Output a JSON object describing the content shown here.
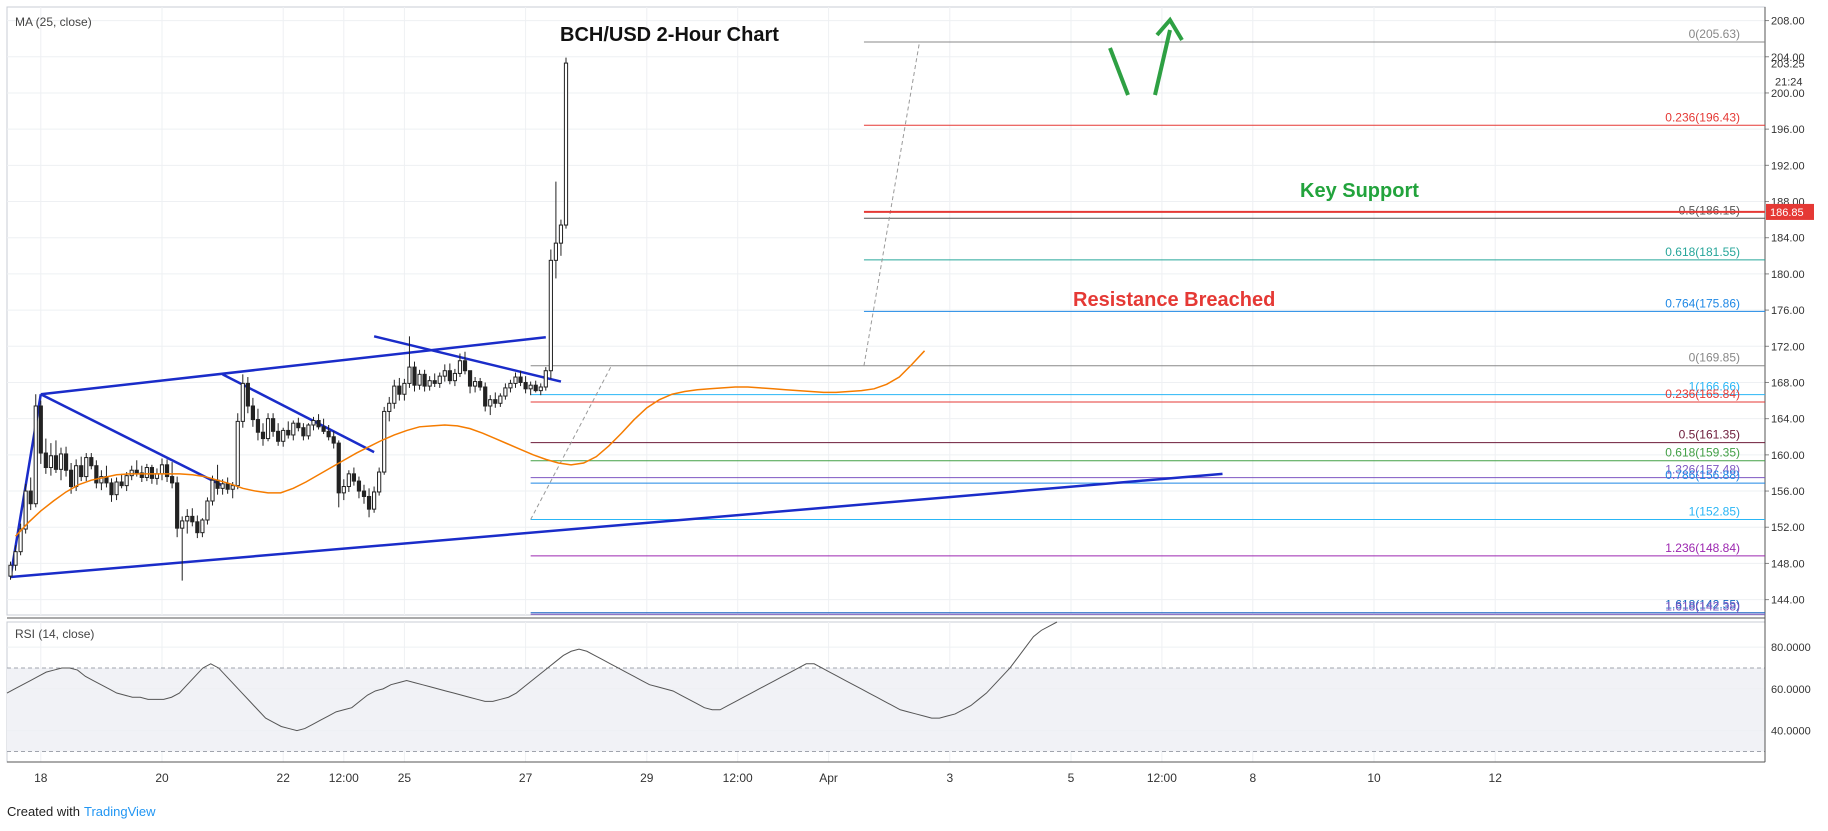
{
  "chart_data": {
    "type": "candlestick",
    "title": "BCH/USD 2-Hour Chart",
    "indicator_label": "MA (25, close)",
    "rsi_label": "RSI (14, close)",
    "price_axis": {
      "ticks": [
        "208.00",
        "204.00",
        "200.00",
        "196.00",
        "192.00",
        "188.00",
        "184.00",
        "180.00",
        "176.00",
        "172.00",
        "168.00",
        "164.00",
        "160.00",
        "156.00",
        "152.00",
        "148.00",
        "144.00"
      ],
      "range": [
        142.3,
        209.5
      ],
      "last_price": "203.25",
      "countdown": "21:24",
      "marked_price": "186.85"
    },
    "rsi_axis": {
      "ticks": [
        "80.0000",
        "60.0000",
        "40.0000"
      ],
      "range": [
        25,
        92
      ],
      "bands": [
        70,
        30
      ]
    },
    "x_axis": {
      "ticks": [
        "18",
        "20",
        "22",
        "12:00",
        "25",
        "27",
        "29",
        "12:00",
        "Apr",
        "3",
        "5",
        "12:00",
        "8",
        "10",
        "12"
      ],
      "tick_bars": [
        6,
        30,
        54,
        66,
        78,
        102,
        126,
        144,
        162,
        186,
        210,
        228,
        246,
        270,
        294
      ]
    },
    "annotations": {
      "key_support": "Key Support",
      "resistance": "Resistance Breached",
      "key_support_price": 186.85
    },
    "fib_upper": [
      {
        "label": "0(205.63)",
        "price": 205.63,
        "color": "#888888"
      },
      {
        "label": "0.236(196.43)",
        "price": 196.43,
        "color": "#e53935"
      },
      {
        "label": "0.5(186.15)",
        "price": 186.15,
        "color": "#555555"
      },
      {
        "label": "0.618(181.55)",
        "price": 181.55,
        "color": "#26a69a"
      },
      {
        "label": "0.764(175.86)",
        "price": 175.86,
        "color": "#1e88e5"
      }
    ],
    "fib_lower": [
      {
        "label": "0(169.85)",
        "price": 169.85,
        "color": "#888888"
      },
      {
        "label": "1(166.66)",
        "price": 166.66,
        "color": "#29b6f6"
      },
      {
        "label": "0.236(165.84)",
        "price": 165.84,
        "color": "#e53935"
      },
      {
        "label": "0.5(161.35)",
        "price": 161.35,
        "color": "#6d1b3a"
      },
      {
        "label": "0.618(159.35)",
        "price": 159.35,
        "color": "#43a047"
      },
      {
        "label": "1.326(157.48)",
        "price": 157.48,
        "color": "#7e57c2"
      },
      {
        "label": "0.786(156.88)",
        "price": 156.88,
        "color": "#1e88e5"
      },
      {
        "label": "1(152.85)",
        "price": 152.85,
        "color": "#29b6f6"
      },
      {
        "label": "1.236(148.84)",
        "price": 148.84,
        "color": "#9c27b0"
      },
      {
        "label": "1.618(142.55)",
        "price": 142.55,
        "color": "#1565c0"
      },
      {
        "label": "1.618(142.38)",
        "price": 142.38,
        "color": "#7e57c2"
      }
    ],
    "trend_lines": [
      {
        "from": [
          0,
          146.5
        ],
        "to": [
          6,
          166.7
        ]
      },
      {
        "from": [
          6,
          166.7
        ],
        "to": [
          42,
          156.6
        ]
      },
      {
        "from": [
          6,
          166.7
        ],
        "to": [
          106,
          173.0
        ]
      },
      {
        "from": [
          0,
          146.5
        ],
        "to": [
          240,
          157.9
        ]
      },
      {
        "from": [
          42,
          168.9
        ],
        "to": [
          72,
          160.3
        ]
      },
      {
        "from": [
          72,
          173.1
        ],
        "to": [
          109,
          168.1
        ]
      }
    ],
    "candles": [
      {
        "o": 146.6,
        "h": 148.2,
        "l": 146.2,
        "c": 147.8
      },
      {
        "o": 147.8,
        "h": 150.0,
        "l": 147.2,
        "c": 149.3
      },
      {
        "o": 149.3,
        "h": 152.4,
        "l": 148.9,
        "c": 151.8
      },
      {
        "o": 151.8,
        "h": 156.8,
        "l": 151.3,
        "c": 156.0
      },
      {
        "o": 156.0,
        "h": 157.5,
        "l": 153.9,
        "c": 154.6
      },
      {
        "o": 154.6,
        "h": 166.7,
        "l": 154.2,
        "c": 165.4
      },
      {
        "o": 165.4,
        "h": 166.0,
        "l": 159.0,
        "c": 160.2
      },
      {
        "o": 160.2,
        "h": 161.8,
        "l": 157.9,
        "c": 158.6
      },
      {
        "o": 158.6,
        "h": 161.3,
        "l": 157.7,
        "c": 159.9
      },
      {
        "o": 159.9,
        "h": 161.6,
        "l": 158.0,
        "c": 158.4
      },
      {
        "o": 158.4,
        "h": 160.8,
        "l": 157.2,
        "c": 160.1
      },
      {
        "o": 160.1,
        "h": 160.9,
        "l": 157.6,
        "c": 158.3
      },
      {
        "o": 158.3,
        "h": 159.1,
        "l": 155.7,
        "c": 156.5
      },
      {
        "o": 156.5,
        "h": 159.5,
        "l": 156.0,
        "c": 158.8
      },
      {
        "o": 158.8,
        "h": 159.8,
        "l": 157.1,
        "c": 157.6
      },
      {
        "o": 157.6,
        "h": 160.2,
        "l": 157.1,
        "c": 159.7
      },
      {
        "o": 159.7,
        "h": 160.2,
        "l": 158.4,
        "c": 158.8
      },
      {
        "o": 158.8,
        "h": 159.4,
        "l": 156.3,
        "c": 156.9
      },
      {
        "o": 156.9,
        "h": 158.3,
        "l": 156.1,
        "c": 157.6
      },
      {
        "o": 157.6,
        "h": 158.8,
        "l": 156.4,
        "c": 156.9
      },
      {
        "o": 156.9,
        "h": 157.4,
        "l": 154.8,
        "c": 155.6
      },
      {
        "o": 155.6,
        "h": 157.5,
        "l": 155.0,
        "c": 157.0
      },
      {
        "o": 157.0,
        "h": 157.9,
        "l": 156.3,
        "c": 156.6
      },
      {
        "o": 156.6,
        "h": 158.1,
        "l": 156.0,
        "c": 157.7
      },
      {
        "o": 157.7,
        "h": 158.8,
        "l": 157.2,
        "c": 158.3
      },
      {
        "o": 158.3,
        "h": 159.4,
        "l": 157.6,
        "c": 158.0
      },
      {
        "o": 158.0,
        "h": 158.8,
        "l": 157.0,
        "c": 157.5
      },
      {
        "o": 157.5,
        "h": 159.0,
        "l": 157.1,
        "c": 158.6
      },
      {
        "o": 158.6,
        "h": 158.9,
        "l": 156.8,
        "c": 157.4
      },
      {
        "o": 157.4,
        "h": 158.5,
        "l": 156.7,
        "c": 157.9
      },
      {
        "o": 157.9,
        "h": 159.6,
        "l": 157.2,
        "c": 158.9
      },
      {
        "o": 158.9,
        "h": 159.5,
        "l": 157.0,
        "c": 157.6
      },
      {
        "o": 157.6,
        "h": 159.2,
        "l": 156.3,
        "c": 156.9
      },
      {
        "o": 156.9,
        "h": 157.6,
        "l": 150.9,
        "c": 151.9
      },
      {
        "o": 151.9,
        "h": 153.2,
        "l": 146.1,
        "c": 152.7
      },
      {
        "o": 152.7,
        "h": 154.0,
        "l": 151.3,
        "c": 153.2
      },
      {
        "o": 153.2,
        "h": 154.1,
        "l": 152.1,
        "c": 152.6
      },
      {
        "o": 152.6,
        "h": 153.3,
        "l": 150.8,
        "c": 151.4
      },
      {
        "o": 151.4,
        "h": 153.0,
        "l": 150.9,
        "c": 152.8
      },
      {
        "o": 152.8,
        "h": 155.3,
        "l": 152.3,
        "c": 154.9
      },
      {
        "o": 154.9,
        "h": 157.7,
        "l": 154.4,
        "c": 157.2
      },
      {
        "o": 157.2,
        "h": 158.9,
        "l": 155.6,
        "c": 156.3
      },
      {
        "o": 156.3,
        "h": 157.3,
        "l": 155.6,
        "c": 156.8
      },
      {
        "o": 156.8,
        "h": 157.5,
        "l": 155.7,
        "c": 156.2
      },
      {
        "o": 156.2,
        "h": 157.0,
        "l": 155.2,
        "c": 156.6
      },
      {
        "o": 156.6,
        "h": 164.6,
        "l": 156.2,
        "c": 163.7
      },
      {
        "o": 163.7,
        "h": 168.9,
        "l": 163.0,
        "c": 167.9
      },
      {
        "o": 167.9,
        "h": 168.6,
        "l": 164.6,
        "c": 165.4
      },
      {
        "o": 165.4,
        "h": 166.3,
        "l": 163.1,
        "c": 163.9
      },
      {
        "o": 163.9,
        "h": 165.1,
        "l": 161.6,
        "c": 162.5
      },
      {
        "o": 162.5,
        "h": 163.5,
        "l": 161.0,
        "c": 161.8
      },
      {
        "o": 161.8,
        "h": 164.6,
        "l": 161.5,
        "c": 164.0
      },
      {
        "o": 164.0,
        "h": 164.6,
        "l": 162.0,
        "c": 162.6
      },
      {
        "o": 162.6,
        "h": 163.5,
        "l": 161.0,
        "c": 161.5
      },
      {
        "o": 161.5,
        "h": 163.0,
        "l": 160.9,
        "c": 162.7
      },
      {
        "o": 162.7,
        "h": 163.7,
        "l": 161.8,
        "c": 162.2
      },
      {
        "o": 162.2,
        "h": 163.8,
        "l": 161.6,
        "c": 163.5
      },
      {
        "o": 163.5,
        "h": 164.1,
        "l": 162.6,
        "c": 163.0
      },
      {
        "o": 163.0,
        "h": 163.5,
        "l": 161.6,
        "c": 162.1
      },
      {
        "o": 162.1,
        "h": 163.5,
        "l": 161.7,
        "c": 163.3
      },
      {
        "o": 163.3,
        "h": 164.2,
        "l": 162.7,
        "c": 163.8
      },
      {
        "o": 163.8,
        "h": 164.5,
        "l": 162.8,
        "c": 163.1
      },
      {
        "o": 163.1,
        "h": 164.0,
        "l": 162.3,
        "c": 162.6
      },
      {
        "o": 162.6,
        "h": 163.3,
        "l": 161.6,
        "c": 162.0
      },
      {
        "o": 162.0,
        "h": 162.6,
        "l": 160.7,
        "c": 161.3
      },
      {
        "o": 161.3,
        "h": 161.6,
        "l": 154.2,
        "c": 155.8
      },
      {
        "o": 155.8,
        "h": 157.3,
        "l": 155.0,
        "c": 156.5
      },
      {
        "o": 156.5,
        "h": 158.3,
        "l": 155.9,
        "c": 157.9
      },
      {
        "o": 157.9,
        "h": 158.6,
        "l": 156.6,
        "c": 157.1
      },
      {
        "o": 157.1,
        "h": 157.6,
        "l": 155.2,
        "c": 156.0
      },
      {
        "o": 156.0,
        "h": 156.7,
        "l": 154.6,
        "c": 155.4
      },
      {
        "o": 155.4,
        "h": 156.3,
        "l": 153.1,
        "c": 154.0
      },
      {
        "o": 154.0,
        "h": 156.5,
        "l": 153.6,
        "c": 155.9
      },
      {
        "o": 155.9,
        "h": 158.6,
        "l": 155.5,
        "c": 158.1
      },
      {
        "o": 158.1,
        "h": 165.3,
        "l": 157.8,
        "c": 164.8
      },
      {
        "o": 164.8,
        "h": 166.4,
        "l": 163.7,
        "c": 165.7
      },
      {
        "o": 165.7,
        "h": 168.3,
        "l": 165.1,
        "c": 167.6
      },
      {
        "o": 167.6,
        "h": 168.5,
        "l": 166.0,
        "c": 166.7
      },
      {
        "o": 166.7,
        "h": 168.4,
        "l": 166.0,
        "c": 167.9
      },
      {
        "o": 167.9,
        "h": 173.1,
        "l": 167.4,
        "c": 169.7
      },
      {
        "o": 169.7,
        "h": 170.3,
        "l": 167.0,
        "c": 167.7
      },
      {
        "o": 167.7,
        "h": 169.4,
        "l": 167.2,
        "c": 168.9
      },
      {
        "o": 168.9,
        "h": 169.4,
        "l": 167.0,
        "c": 167.6
      },
      {
        "o": 167.6,
        "h": 168.7,
        "l": 167.1,
        "c": 168.2
      },
      {
        "o": 168.2,
        "h": 169.0,
        "l": 167.5,
        "c": 167.9
      },
      {
        "o": 167.9,
        "h": 169.1,
        "l": 167.4,
        "c": 168.7
      },
      {
        "o": 168.7,
        "h": 170.0,
        "l": 168.1,
        "c": 169.3
      },
      {
        "o": 169.3,
        "h": 170.1,
        "l": 167.8,
        "c": 168.2
      },
      {
        "o": 168.2,
        "h": 169.5,
        "l": 167.6,
        "c": 169.0
      },
      {
        "o": 169.0,
        "h": 171.2,
        "l": 168.6,
        "c": 170.4
      },
      {
        "o": 170.4,
        "h": 171.4,
        "l": 168.9,
        "c": 169.3
      },
      {
        "o": 169.3,
        "h": 168.9,
        "l": 166.8,
        "c": 167.6
      },
      {
        "o": 167.6,
        "h": 168.6,
        "l": 166.9,
        "c": 168.1
      },
      {
        "o": 168.1,
        "h": 168.5,
        "l": 167.1,
        "c": 167.5
      },
      {
        "o": 167.5,
        "h": 168.0,
        "l": 164.8,
        "c": 165.4
      },
      {
        "o": 165.4,
        "h": 166.6,
        "l": 164.4,
        "c": 166.1
      },
      {
        "o": 166.1,
        "h": 166.9,
        "l": 165.2,
        "c": 165.7
      },
      {
        "o": 165.7,
        "h": 166.8,
        "l": 165.3,
        "c": 166.5
      },
      {
        "o": 166.5,
        "h": 167.9,
        "l": 166.1,
        "c": 167.4
      },
      {
        "o": 167.4,
        "h": 168.3,
        "l": 166.9,
        "c": 167.9
      },
      {
        "o": 167.9,
        "h": 169.1,
        "l": 167.4,
        "c": 168.6
      },
      {
        "o": 168.6,
        "h": 169.3,
        "l": 167.6,
        "c": 168.0
      },
      {
        "o": 168.0,
        "h": 168.7,
        "l": 166.8,
        "c": 167.3
      },
      {
        "o": 167.3,
        "h": 168.1,
        "l": 166.6,
        "c": 167.7
      },
      {
        "o": 167.7,
        "h": 168.2,
        "l": 166.9,
        "c": 167.1
      },
      {
        "o": 167.1,
        "h": 167.9,
        "l": 166.6,
        "c": 167.5
      },
      {
        "o": 167.5,
        "h": 169.7,
        "l": 167.1,
        "c": 169.3
      },
      {
        "o": 169.3,
        "h": 182.7,
        "l": 168.4,
        "c": 181.5
      },
      {
        "o": 181.5,
        "h": 190.2,
        "l": 179.5,
        "c": 183.4
      },
      {
        "o": 183.4,
        "h": 186.0,
        "l": 182.0,
        "c": 185.4
      },
      {
        "o": 185.4,
        "h": 203.9,
        "l": 185.0,
        "c": 203.3
      }
    ],
    "ma25": [
      151.0,
      152.5,
      153.8,
      154.9,
      155.9,
      156.7,
      157.2,
      157.5,
      157.8,
      157.9,
      157.9,
      157.9,
      157.9,
      157.9,
      157.8,
      157.6,
      157.2,
      156.8,
      156.3,
      156.0,
      155.8,
      155.8,
      156.3,
      157.0,
      157.8,
      158.6,
      159.4,
      160.2,
      160.9,
      161.6,
      162.2,
      162.7,
      163.1,
      163.2,
      163.3,
      163.2,
      162.9,
      162.4,
      161.8,
      161.2,
      160.6,
      160.0,
      159.5,
      159.1,
      158.9,
      159.1,
      159.8,
      161.0,
      162.4,
      163.9,
      165.2,
      166.1,
      166.7,
      167.0,
      167.2,
      167.3,
      167.4,
      167.5,
      167.5,
      167.4,
      167.3,
      167.2,
      167.1,
      167.0,
      166.9,
      166.9,
      167.0,
      167.1,
      167.3,
      167.8,
      168.6,
      170.0,
      171.5
    ],
    "ma25_start": 1,
    "rsi": [
      58,
      60,
      62,
      64,
      66,
      68,
      69,
      70,
      70,
      69,
      66,
      64,
      62,
      60,
      58,
      57,
      56,
      56,
      55,
      55,
      55,
      56,
      58,
      62,
      66,
      70,
      72,
      70,
      66,
      62,
      58,
      54,
      50,
      46,
      44,
      42,
      41,
      40,
      41,
      43,
      45,
      47,
      49,
      50,
      51,
      54,
      57,
      59,
      60,
      62,
      63,
      64,
      63,
      62,
      61,
      60,
      59,
      58,
      57,
      56,
      55,
      54,
      54,
      55,
      56,
      58,
      61,
      64,
      67,
      70,
      73,
      76,
      78,
      79,
      78,
      76,
      74,
      72,
      70,
      68,
      66,
      64,
      62,
      61,
      60,
      59,
      57,
      55,
      53,
      51,
      50,
      50,
      52,
      54,
      56,
      58,
      60,
      62,
      64,
      66,
      68,
      70,
      72,
      72,
      70,
      68,
      66,
      64,
      62,
      60,
      58,
      56,
      54,
      52,
      50,
      49,
      48,
      47,
      46,
      46,
      47,
      48,
      50,
      52,
      55,
      58,
      62,
      66,
      70,
      75,
      80,
      85,
      88,
      90,
      92
    ]
  }
}
